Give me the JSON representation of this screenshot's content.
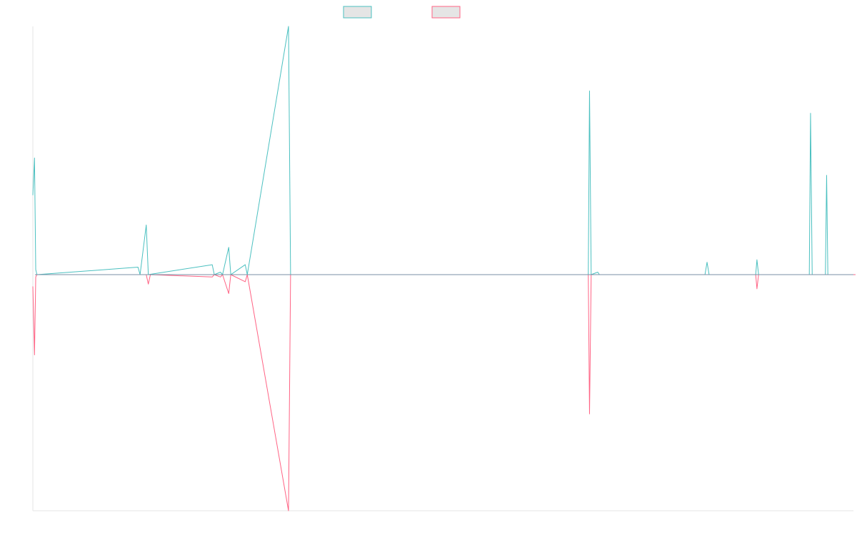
{
  "chart_data": {
    "type": "line",
    "title": "",
    "xlabel": "",
    "ylabel": "",
    "grid": false,
    "legend": {
      "placement": "top-center",
      "show_labels": false
    },
    "colors": {
      "series_a": "#4bc0c0",
      "series_b": "#ff6384",
      "legend_fill": "#e5e5e5",
      "axis": "#e5e5e5",
      "baseline": "#7a8fa6"
    },
    "x_count": 200,
    "ylim": [
      -1,
      1
    ],
    "series": [
      {
        "name": "",
        "points": [
          [
            0,
            0.32
          ],
          [
            0.4,
            0.47
          ],
          [
            0.7,
            0.02
          ],
          [
            1,
            0
          ],
          [
            25.5,
            0.03
          ],
          [
            26,
            0
          ],
          [
            27.5,
            0.2
          ],
          [
            28,
            0
          ],
          [
            43.5,
            0.04
          ],
          [
            44,
            0
          ],
          [
            45.5,
            0.01
          ],
          [
            46,
            0
          ],
          [
            47.5,
            0.11
          ],
          [
            48,
            0
          ],
          [
            51.5,
            0.04
          ],
          [
            52,
            0
          ],
          [
            62,
            1
          ],
          [
            62.5,
            0
          ],
          [
            134.7,
            0
          ],
          [
            135,
            0.74
          ],
          [
            135.4,
            0
          ],
          [
            137,
            0.01
          ],
          [
            137.4,
            0
          ],
          [
            163,
            0
          ],
          [
            163.5,
            0.05
          ],
          [
            164,
            0
          ],
          [
            175.3,
            0
          ],
          [
            175.6,
            0.06
          ],
          [
            176,
            0
          ],
          [
            188.3,
            0
          ],
          [
            188.6,
            0.65
          ],
          [
            189,
            0
          ],
          [
            192.2,
            0
          ],
          [
            192.5,
            0.4
          ],
          [
            192.8,
            0
          ],
          [
            199.5,
            0
          ]
        ]
      },
      {
        "name": "",
        "points": [
          [
            0,
            -0.05
          ],
          [
            0.4,
            -0.34
          ],
          [
            0.7,
            -0.01
          ],
          [
            1,
            0
          ],
          [
            27.5,
            0
          ],
          [
            28,
            -0.04
          ],
          [
            28.5,
            0
          ],
          [
            43.5,
            -0.01
          ],
          [
            44,
            0
          ],
          [
            45.5,
            -0.01
          ],
          [
            46,
            0
          ],
          [
            47.5,
            -0.08
          ],
          [
            48,
            0
          ],
          [
            51.5,
            -0.03
          ],
          [
            52,
            0
          ],
          [
            62,
            -1
          ],
          [
            62.5,
            0
          ],
          [
            134.7,
            0
          ],
          [
            135,
            -0.59
          ],
          [
            135.4,
            0
          ],
          [
            175.3,
            0
          ],
          [
            175.6,
            -0.06
          ],
          [
            176,
            0
          ],
          [
            199.5,
            0
          ]
        ]
      }
    ]
  }
}
